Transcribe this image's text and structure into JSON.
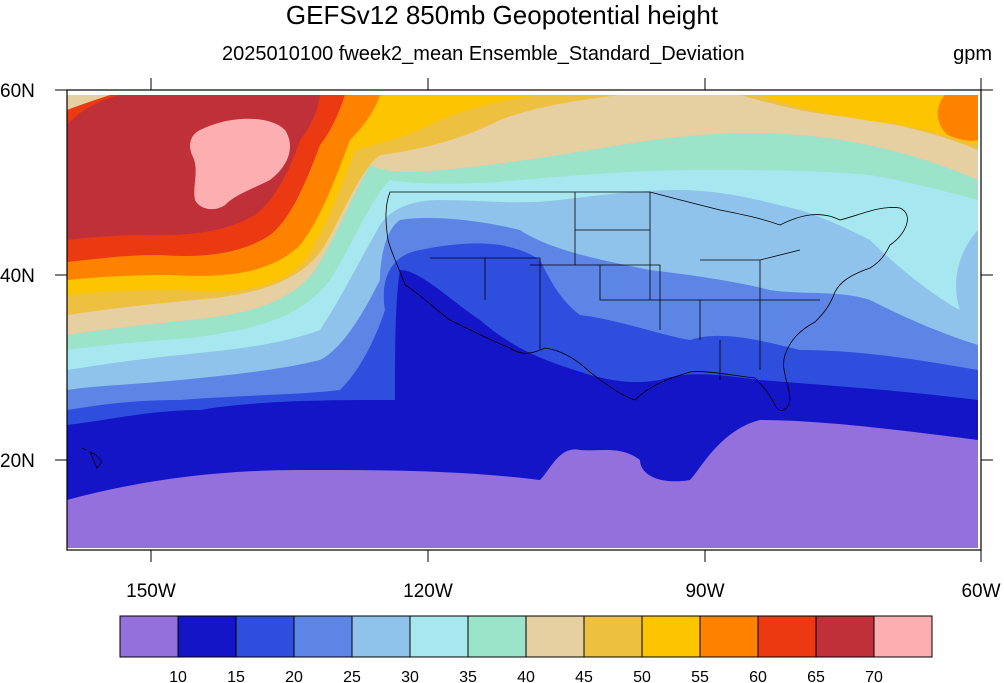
{
  "title": "GEFSv12 850mb Geopotential height",
  "subtitle": "2025010100 fweek2_mean Ensemble_Standard_Deviation",
  "units": "gpm",
  "lat_labels": [
    "60N",
    "40N",
    "20N"
  ],
  "lon_labels": [
    "150W",
    "120W",
    "90W",
    "60W"
  ],
  "colorbar": {
    "labels": [
      "10",
      "15",
      "20",
      "25",
      "30",
      "35",
      "40",
      "45",
      "50",
      "55",
      "60",
      "65",
      "70"
    ],
    "colors": [
      "#9370db",
      "#1515c8",
      "#2e4ede",
      "#5c85e6",
      "#8fc3ec",
      "#a7e8f0",
      "#9be3c9",
      "#e6cfa0",
      "#eec040",
      "#fdc400",
      "#fd8200",
      "#eb3a12",
      "#bf3038",
      "#fdaeb1"
    ]
  },
  "region": {
    "lon_range": [
      "160W",
      "60W"
    ],
    "lat_range": [
      "10N",
      "60N"
    ]
  }
}
